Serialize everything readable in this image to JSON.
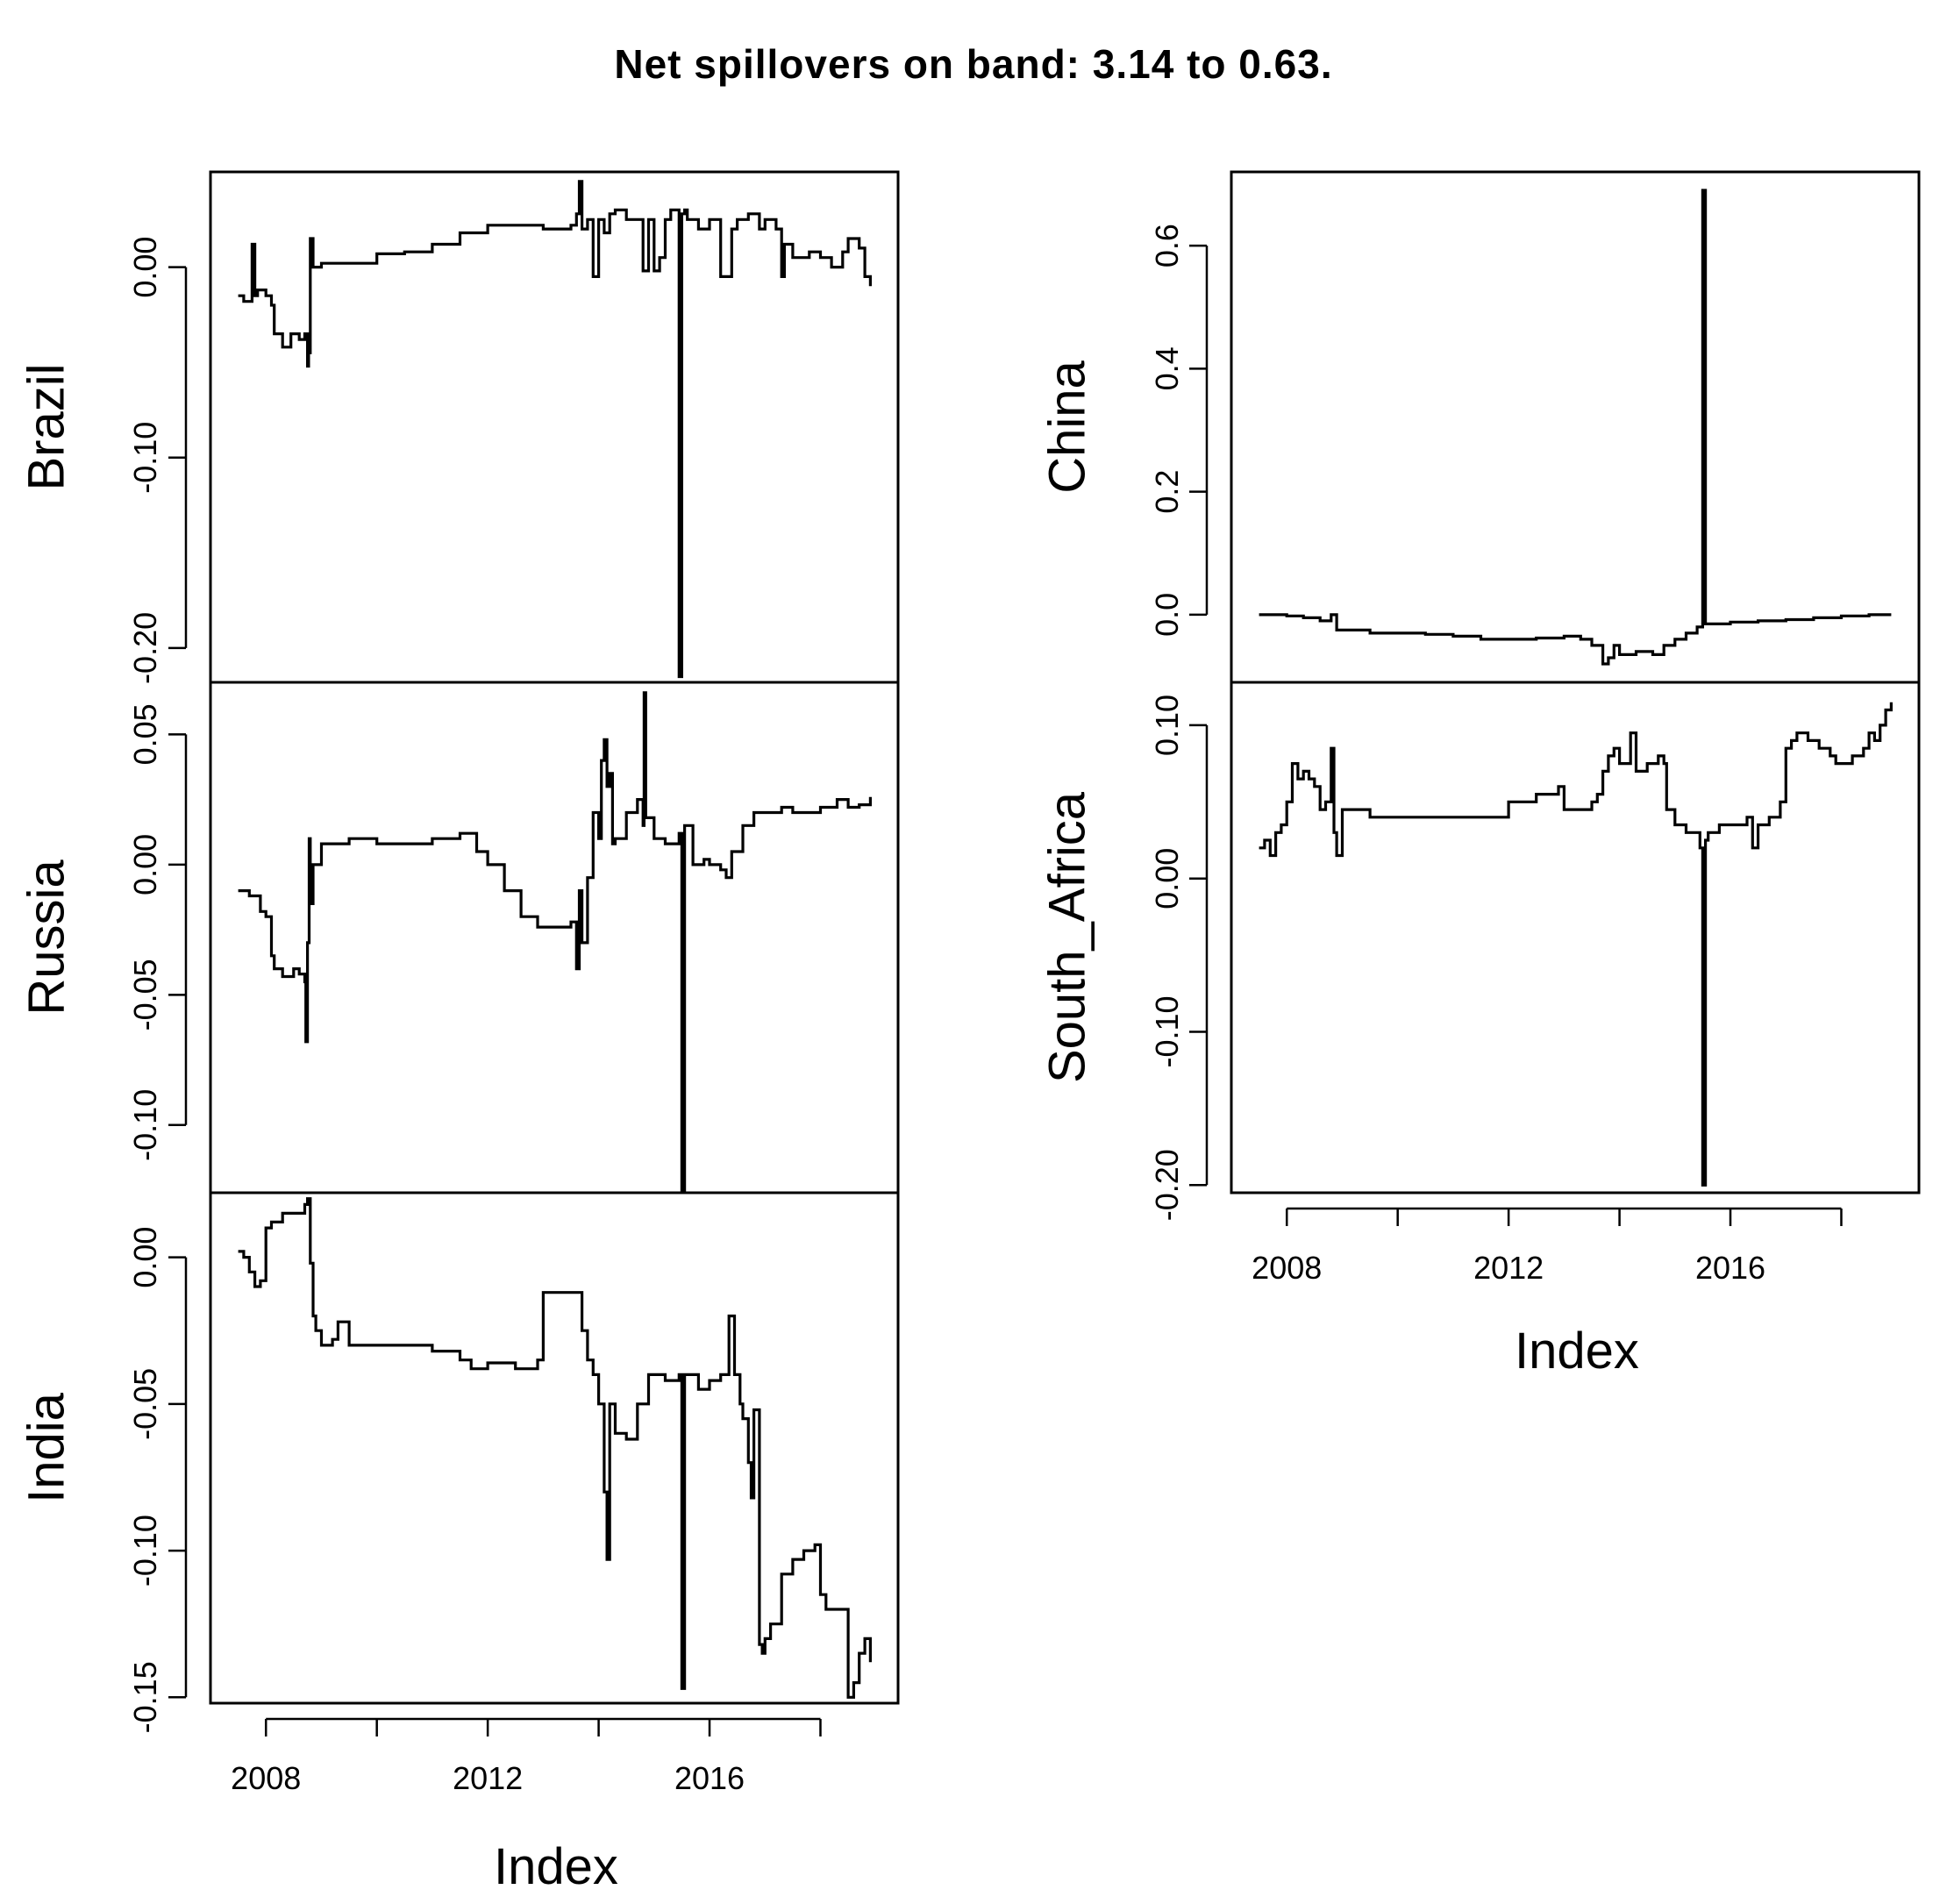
{
  "title": "Net spillovers on band: 3.14 to 0.63.",
  "xlabel": "Index",
  "chart_data": [
    {
      "type": "line",
      "series_name": "Brazil",
      "ylabel": "Brazil",
      "ylim": [
        -0.218,
        0.05
      ],
      "yticks": [
        0.0,
        -0.1,
        -0.2
      ],
      "ytick_labels": [
        "0.00",
        "-0.10",
        "-0.20"
      ],
      "x": [
        2007.5,
        2007.6,
        2007.75,
        2007.8,
        2007.85,
        2008.0,
        2008.1,
        2008.15,
        2008.3,
        2008.45,
        2008.6,
        2008.7,
        2008.75,
        2008.77,
        2008.8,
        2008.85,
        2009.0,
        2009.5,
        2010.0,
        2010.5,
        2011.0,
        2011.5,
        2012.0,
        2012.5,
        2013.0,
        2013.5,
        2013.6,
        2013.65,
        2013.7,
        2013.8,
        2013.9,
        2014.0,
        2014.1,
        2014.2,
        2014.3,
        2014.5,
        2014.8,
        2014.9,
        2015.0,
        2015.1,
        2015.2,
        2015.3,
        2015.45,
        2015.5,
        2015.55,
        2015.6,
        2015.8,
        2016.0,
        2016.2,
        2016.4,
        2016.5,
        2016.7,
        2016.9,
        2017.0,
        2017.2,
        2017.3,
        2017.35,
        2017.5,
        2017.8,
        2018.0,
        2018.2,
        2018.4,
        2018.5,
        2018.7,
        2018.8,
        2018.9
      ],
      "values": [
        -0.015,
        -0.018,
        0.012,
        -0.015,
        -0.012,
        -0.015,
        -0.02,
        -0.035,
        -0.042,
        -0.035,
        -0.038,
        -0.035,
        -0.052,
        -0.045,
        0.015,
        0.0,
        0.002,
        0.002,
        0.007,
        0.008,
        0.012,
        0.018,
        0.022,
        0.022,
        0.02,
        0.022,
        0.028,
        0.045,
        0.02,
        0.025,
        -0.005,
        0.025,
        0.018,
        0.028,
        0.03,
        0.025,
        -0.002,
        0.025,
        -0.002,
        0.005,
        0.025,
        0.03,
        -0.215,
        0.028,
        0.03,
        0.025,
        0.02,
        0.025,
        -0.005,
        0.02,
        0.025,
        0.028,
        0.02,
        0.025,
        0.02,
        -0.005,
        0.012,
        0.005,
        0.008,
        0.005,
        0.0,
        0.008,
        0.015,
        0.01,
        -0.005,
        -0.01
      ]
    },
    {
      "type": "line",
      "series_name": "Russia",
      "ylabel": "Russia",
      "ylim": [
        -0.126,
        0.07
      ],
      "yticks": [
        0.05,
        0.0,
        -0.05,
        -0.1
      ],
      "ytick_labels": [
        "0.05",
        "0.00",
        "-0.05",
        "-0.10"
      ],
      "x": [
        2007.5,
        2007.7,
        2007.9,
        2008.0,
        2008.1,
        2008.15,
        2008.3,
        2008.5,
        2008.6,
        2008.7,
        2008.72,
        2008.75,
        2008.78,
        2008.8,
        2008.85,
        2009.0,
        2009.5,
        2010.0,
        2010.5,
        2011.0,
        2011.5,
        2011.8,
        2012.0,
        2012.3,
        2012.6,
        2012.9,
        2013.2,
        2013.5,
        2013.6,
        2013.65,
        2013.7,
        2013.8,
        2013.9,
        2014.0,
        2014.05,
        2014.1,
        2014.15,
        2014.2,
        2014.25,
        2014.3,
        2014.5,
        2014.7,
        2014.8,
        2014.82,
        2014.85,
        2015.0,
        2015.2,
        2015.45,
        2015.5,
        2015.55,
        2015.7,
        2015.9,
        2016.0,
        2016.2,
        2016.3,
        2016.4,
        2016.6,
        2016.8,
        2017.0,
        2017.3,
        2017.5,
        2017.8,
        2018.0,
        2018.3,
        2018.5,
        2018.7,
        2018.9
      ],
      "values": [
        -0.01,
        -0.012,
        -0.018,
        -0.02,
        -0.035,
        -0.04,
        -0.043,
        -0.04,
        -0.042,
        -0.045,
        -0.068,
        -0.03,
        0.01,
        -0.015,
        0.0,
        0.008,
        0.01,
        0.008,
        0.008,
        0.01,
        0.012,
        0.005,
        0.0,
        -0.01,
        -0.02,
        -0.024,
        -0.024,
        -0.022,
        -0.04,
        -0.01,
        -0.03,
        -0.005,
        0.02,
        0.01,
        0.04,
        0.048,
        0.03,
        0.035,
        0.008,
        0.01,
        0.02,
        0.025,
        0.015,
        0.066,
        0.018,
        0.01,
        0.008,
        0.012,
        -0.125,
        0.015,
        0.0,
        0.002,
        0.0,
        -0.002,
        -0.005,
        0.005,
        0.015,
        0.02,
        0.02,
        0.022,
        0.02,
        0.02,
        0.022,
        0.025,
        0.022,
        0.023,
        0.026
      ]
    },
    {
      "type": "line",
      "series_name": "India",
      "ylabel": "India",
      "ylim": [
        -0.152,
        0.022
      ],
      "yticks": [
        0.0,
        -0.05,
        -0.1,
        -0.15
      ],
      "ytick_labels": [
        "0.00",
        "-0.05",
        "-0.10",
        "-0.15"
      ],
      "x": [
        2007.5,
        2007.6,
        2007.7,
        2007.8,
        2007.9,
        2008.0,
        2008.1,
        2008.3,
        2008.5,
        2008.7,
        2008.75,
        2008.8,
        2008.85,
        2008.9,
        2009.0,
        2009.2,
        2009.3,
        2009.5,
        2010.0,
        2010.5,
        2011.0,
        2011.5,
        2011.7,
        2012.0,
        2012.5,
        2012.9,
        2013.0,
        2013.5,
        2013.7,
        2013.8,
        2013.9,
        2014.0,
        2014.1,
        2014.15,
        2014.2,
        2014.3,
        2014.5,
        2014.7,
        2014.9,
        2015.0,
        2015.2,
        2015.45,
        2015.5,
        2015.55,
        2015.8,
        2016.0,
        2016.2,
        2016.35,
        2016.45,
        2016.55,
        2016.6,
        2016.7,
        2016.75,
        2016.8,
        2016.9,
        2016.95,
        2017.0,
        2017.1,
        2017.3,
        2017.5,
        2017.7,
        2017.9,
        2018.0,
        2018.1,
        2018.3,
        2018.5,
        2018.6,
        2018.7,
        2018.8,
        2018.9
      ],
      "values": [
        0.002,
        0.0,
        -0.005,
        -0.01,
        -0.008,
        0.01,
        0.012,
        0.015,
        0.015,
        0.018,
        0.02,
        -0.002,
        -0.02,
        -0.025,
        -0.03,
        -0.028,
        -0.022,
        -0.03,
        -0.03,
        -0.03,
        -0.032,
        -0.035,
        -0.038,
        -0.036,
        -0.038,
        -0.035,
        -0.012,
        -0.012,
        -0.025,
        -0.035,
        -0.04,
        -0.05,
        -0.08,
        -0.103,
        -0.05,
        -0.06,
        -0.062,
        -0.05,
        -0.04,
        -0.04,
        -0.042,
        -0.04,
        -0.147,
        -0.04,
        -0.045,
        -0.042,
        -0.04,
        -0.02,
        -0.04,
        -0.05,
        -0.055,
        -0.07,
        -0.082,
        -0.052,
        -0.132,
        -0.135,
        -0.13,
        -0.125,
        -0.108,
        -0.103,
        -0.1,
        -0.098,
        -0.115,
        -0.12,
        -0.12,
        -0.15,
        -0.145,
        -0.135,
        -0.13,
        -0.138
      ]
    },
    {
      "type": "line",
      "series_name": "China",
      "ylabel": "China",
      "ylim": [
        -0.11,
        0.72
      ],
      "yticks": [
        0.6,
        0.4,
        0.2,
        0.0
      ],
      "ytick_labels": [
        "0.6",
        "0.4",
        "0.2",
        "0.0"
      ],
      "x": [
        2007.5,
        2008.0,
        2008.3,
        2008.6,
        2008.8,
        2008.9,
        2009.0,
        2009.5,
        2010.0,
        2010.5,
        2011.0,
        2011.5,
        2012.0,
        2012.5,
        2013.0,
        2013.3,
        2013.5,
        2013.7,
        2013.8,
        2013.9,
        2014.0,
        2014.3,
        2014.6,
        2014.8,
        2015.0,
        2015.2,
        2015.4,
        2015.5,
        2015.55,
        2015.6,
        2016.0,
        2016.5,
        2017.0,
        2017.5,
        2018.0,
        2018.5,
        2018.9
      ],
      "values": [
        0.0,
        -0.002,
        -0.005,
        -0.01,
        0.0,
        -0.025,
        -0.025,
        -0.03,
        -0.03,
        -0.032,
        -0.035,
        -0.04,
        -0.04,
        -0.038,
        -0.035,
        -0.04,
        -0.05,
        -0.08,
        -0.07,
        -0.05,
        -0.065,
        -0.06,
        -0.065,
        -0.05,
        -0.04,
        -0.03,
        -0.02,
        0.69,
        -0.015,
        -0.015,
        -0.012,
        -0.01,
        -0.008,
        -0.005,
        -0.002,
        0.0,
        0.0
      ]
    },
    {
      "type": "line",
      "series_name": "South_Africa",
      "ylabel": "South_Africa",
      "ylim": [
        -0.205,
        0.128
      ],
      "yticks": [
        0.1,
        0.0,
        -0.1,
        -0.2
      ],
      "ytick_labels": [
        "0.10",
        "0.00",
        "-0.10",
        "-0.20"
      ],
      "x": [
        2007.5,
        2007.6,
        2007.7,
        2007.8,
        2007.9,
        2008.0,
        2008.1,
        2008.2,
        2008.3,
        2008.4,
        2008.5,
        2008.6,
        2008.7,
        2008.8,
        2008.85,
        2008.9,
        2009.0,
        2009.2,
        2009.5,
        2010.0,
        2010.5,
        2011.0,
        2011.5,
        2012.0,
        2012.5,
        2012.9,
        2013.0,
        2013.5,
        2013.6,
        2013.7,
        2013.8,
        2013.9,
        2014.0,
        2014.2,
        2014.3,
        2014.5,
        2014.7,
        2014.8,
        2014.85,
        2015.0,
        2015.2,
        2015.45,
        2015.5,
        2015.55,
        2015.6,
        2015.8,
        2016.0,
        2016.3,
        2016.4,
        2016.5,
        2016.7,
        2016.9,
        2017.0,
        2017.1,
        2017.2,
        2017.4,
        2017.6,
        2017.8,
        2017.9,
        2018.0,
        2018.2,
        2018.4,
        2018.5,
        2018.6,
        2018.7,
        2018.8,
        2018.9
      ],
      "values": [
        0.02,
        0.025,
        0.015,
        0.03,
        0.035,
        0.05,
        0.075,
        0.065,
        0.07,
        0.065,
        0.06,
        0.045,
        0.05,
        0.085,
        0.03,
        0.015,
        0.045,
        0.045,
        0.04,
        0.04,
        0.04,
        0.04,
        0.04,
        0.05,
        0.055,
        0.06,
        0.045,
        0.05,
        0.055,
        0.07,
        0.08,
        0.085,
        0.075,
        0.095,
        0.07,
        0.075,
        0.08,
        0.075,
        0.045,
        0.035,
        0.03,
        0.02,
        -0.2,
        0.025,
        0.03,
        0.035,
        0.035,
        0.04,
        0.02,
        0.035,
        0.04,
        0.05,
        0.085,
        0.09,
        0.095,
        0.09,
        0.085,
        0.08,
        0.075,
        0.075,
        0.08,
        0.085,
        0.095,
        0.09,
        0.1,
        0.11,
        0.115
      ]
    }
  ],
  "x_axis": {
    "xlim": [
      2007.0,
      2019.4
    ],
    "ticks": [
      2008,
      2010,
      2012,
      2014,
      2016,
      2018
    ],
    "tick_labels": [
      "2008",
      "2012",
      "2016"
    ]
  }
}
